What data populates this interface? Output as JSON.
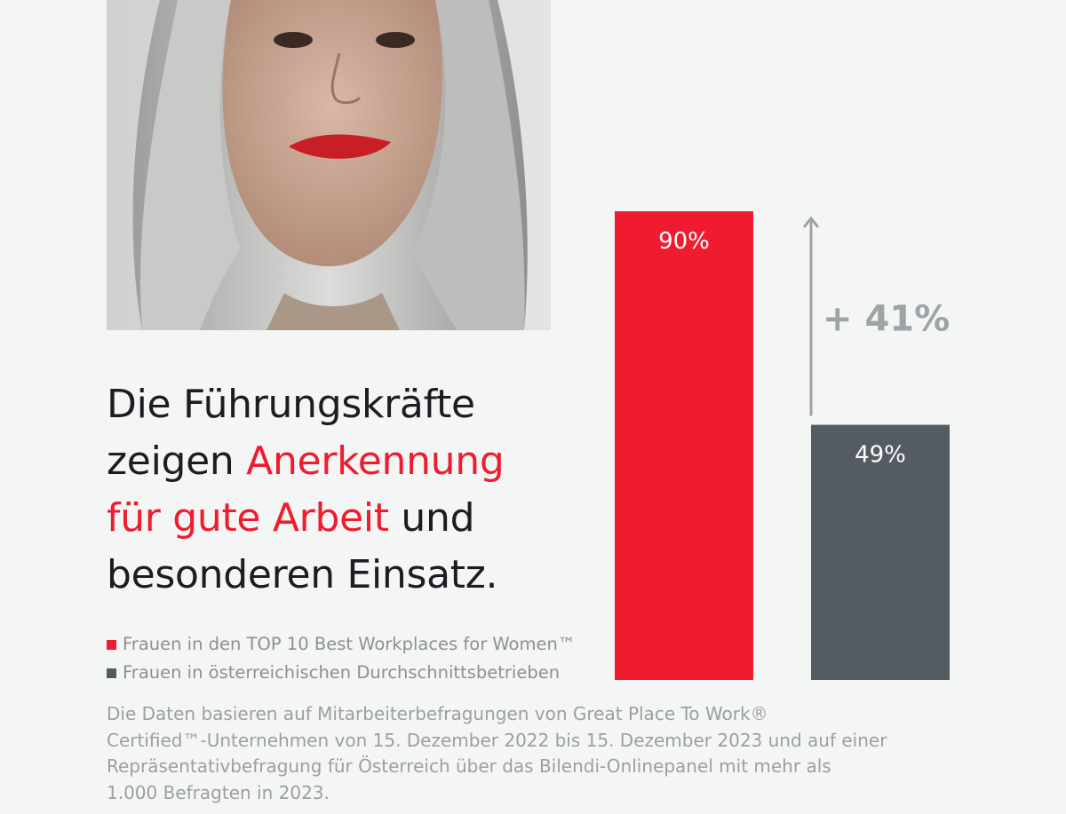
{
  "headline": {
    "line1": "Die Führungskräfte",
    "line2_plain": "zeigen ",
    "line2_accent": "Anerkennung",
    "line3_accent": "für gute Arbeit",
    "line3_plain": " und",
    "line4": "besonderen Einsatz."
  },
  "legend": [
    {
      "label": "Frauen in den TOP 10 Best Workplaces for Women™",
      "color": "#ee1c2e"
    },
    {
      "label": "Frauen in österreichischen Durchschnittsbetrieben",
      "color": "#555b63"
    }
  ],
  "footnote": {
    "line1": "Die Daten basieren auf Mitarbeiterbefragungen von Great Place To Work®",
    "line2": "Certified™-Unternehmen von 15. Dezember 2022 bis 15. Dezember 2023 und auf einer",
    "line3": "Repräsentativbefragung für Österreich über das Bilendi-Onlinepanel mit mehr als",
    "line4": "1.000 Befragten in 2023."
  },
  "chart_data": {
    "type": "bar",
    "series": [
      {
        "name": "Frauen in den TOP 10 Best Workplaces for Women™",
        "value": 90,
        "label": "90%",
        "color": "#ee1c2e"
      },
      {
        "name": "Frauen in österreichischen Durchschnittsbetrieben",
        "value": 49,
        "label": "49%",
        "color": "#555b63"
      }
    ],
    "difference_label": "+ 41%",
    "ylim": [
      0,
      90
    ]
  }
}
